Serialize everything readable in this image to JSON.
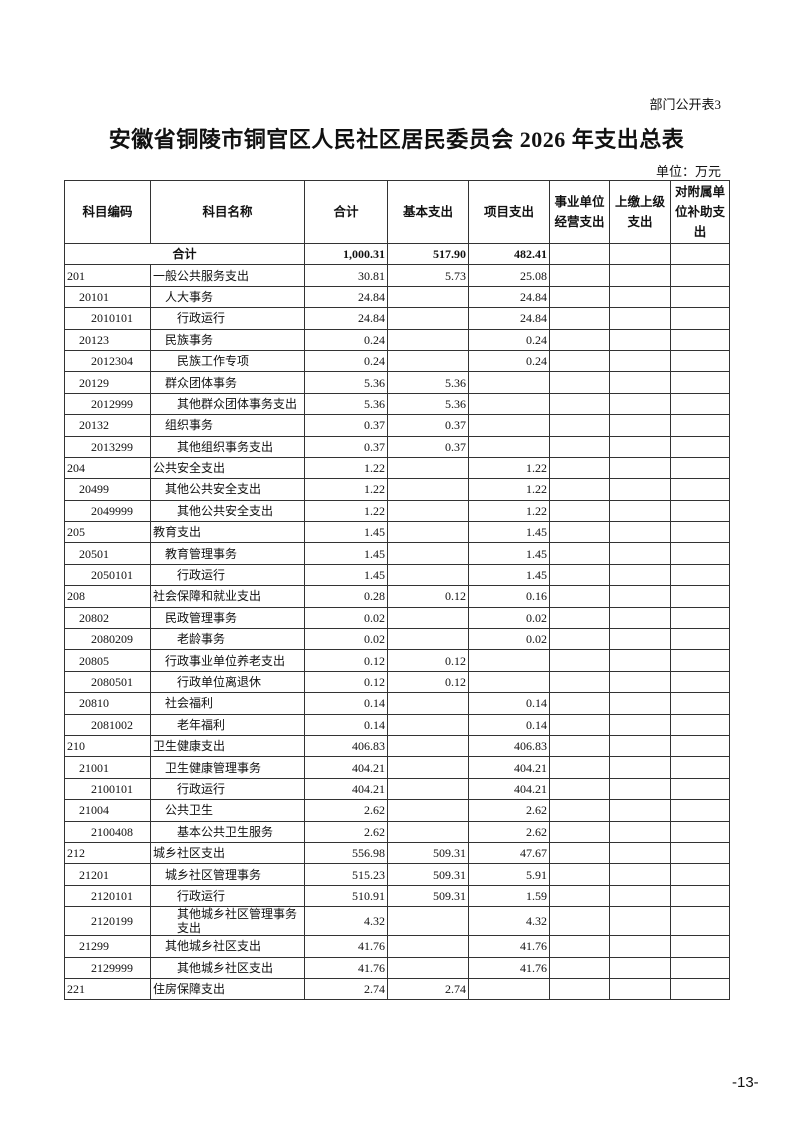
{
  "doc_label": "部门公开表3",
  "title": "安徽省铜陵市铜官区人民社区居民委员会 2026 年支出总表",
  "unit": "单位：万元",
  "page_number": "-13-",
  "table": {
    "headers": [
      "科目编码",
      "科目名称",
      "合计",
      "基本支出",
      "项目支出",
      "事业单位经营支出",
      "上缴上级支出",
      "对附属单位补助支出"
    ],
    "total": {
      "label": "合计",
      "total": "1,000.31",
      "basic": "517.90",
      "project": "482.41"
    },
    "rows": [
      {
        "code": "201",
        "name": "一般公共服务支出",
        "level": 0,
        "total": "30.81",
        "basic": "5.73",
        "project": "25.08"
      },
      {
        "code": "20101",
        "name": "人大事务",
        "level": 1,
        "total": "24.84",
        "basic": "",
        "project": "24.84"
      },
      {
        "code": "2010101",
        "name": "行政运行",
        "level": 2,
        "total": "24.84",
        "basic": "",
        "project": "24.84"
      },
      {
        "code": "20123",
        "name": "民族事务",
        "level": 1,
        "total": "0.24",
        "basic": "",
        "project": "0.24"
      },
      {
        "code": "2012304",
        "name": "民族工作专项",
        "level": 2,
        "total": "0.24",
        "basic": "",
        "project": "0.24"
      },
      {
        "code": "20129",
        "name": "群众团体事务",
        "level": 1,
        "total": "5.36",
        "basic": "5.36",
        "project": ""
      },
      {
        "code": "2012999",
        "name": "其他群众团体事务支出",
        "level": 2,
        "total": "5.36",
        "basic": "5.36",
        "project": ""
      },
      {
        "code": "20132",
        "name": "组织事务",
        "level": 1,
        "total": "0.37",
        "basic": "0.37",
        "project": ""
      },
      {
        "code": "2013299",
        "name": "其他组织事务支出",
        "level": 2,
        "total": "0.37",
        "basic": "0.37",
        "project": ""
      },
      {
        "code": "204",
        "name": "公共安全支出",
        "level": 0,
        "total": "1.22",
        "basic": "",
        "project": "1.22"
      },
      {
        "code": "20499",
        "name": "其他公共安全支出",
        "level": 1,
        "total": "1.22",
        "basic": "",
        "project": "1.22"
      },
      {
        "code": "2049999",
        "name": "其他公共安全支出",
        "level": 2,
        "total": "1.22",
        "basic": "",
        "project": "1.22"
      },
      {
        "code": "205",
        "name": "教育支出",
        "level": 0,
        "total": "1.45",
        "basic": "",
        "project": "1.45"
      },
      {
        "code": "20501",
        "name": "教育管理事务",
        "level": 1,
        "total": "1.45",
        "basic": "",
        "project": "1.45"
      },
      {
        "code": "2050101",
        "name": "行政运行",
        "level": 2,
        "total": "1.45",
        "basic": "",
        "project": "1.45"
      },
      {
        "code": "208",
        "name": "社会保障和就业支出",
        "level": 0,
        "total": "0.28",
        "basic": "0.12",
        "project": "0.16"
      },
      {
        "code": "20802",
        "name": "民政管理事务",
        "level": 1,
        "total": "0.02",
        "basic": "",
        "project": "0.02"
      },
      {
        "code": "2080209",
        "name": "老龄事务",
        "level": 2,
        "total": "0.02",
        "basic": "",
        "project": "0.02"
      },
      {
        "code": "20805",
        "name": "行政事业单位养老支出",
        "level": 1,
        "total": "0.12",
        "basic": "0.12",
        "project": ""
      },
      {
        "code": "2080501",
        "name": "行政单位离退休",
        "level": 2,
        "total": "0.12",
        "basic": "0.12",
        "project": ""
      },
      {
        "code": "20810",
        "name": "社会福利",
        "level": 1,
        "total": "0.14",
        "basic": "",
        "project": "0.14"
      },
      {
        "code": "2081002",
        "name": "老年福利",
        "level": 2,
        "total": "0.14",
        "basic": "",
        "project": "0.14"
      },
      {
        "code": "210",
        "name": "卫生健康支出",
        "level": 0,
        "total": "406.83",
        "basic": "",
        "project": "406.83"
      },
      {
        "code": "21001",
        "name": "卫生健康管理事务",
        "level": 1,
        "total": "404.21",
        "basic": "",
        "project": "404.21"
      },
      {
        "code": "2100101",
        "name": "行政运行",
        "level": 2,
        "total": "404.21",
        "basic": "",
        "project": "404.21"
      },
      {
        "code": "21004",
        "name": "公共卫生",
        "level": 1,
        "total": "2.62",
        "basic": "",
        "project": "2.62"
      },
      {
        "code": "2100408",
        "name": "基本公共卫生服务",
        "level": 2,
        "total": "2.62",
        "basic": "",
        "project": "2.62"
      },
      {
        "code": "212",
        "name": "城乡社区支出",
        "level": 0,
        "total": "556.98",
        "basic": "509.31",
        "project": "47.67"
      },
      {
        "code": "21201",
        "name": "城乡社区管理事务",
        "level": 1,
        "total": "515.23",
        "basic": "509.31",
        "project": "5.91"
      },
      {
        "code": "2120101",
        "name": "行政运行",
        "level": 2,
        "total": "510.91",
        "basic": "509.31",
        "project": "1.59"
      },
      {
        "code": "2120199",
        "name": "其他城乡社区管理事务支出",
        "level": 2,
        "total": "4.32",
        "basic": "",
        "project": "4.32"
      },
      {
        "code": "21299",
        "name": "其他城乡社区支出",
        "level": 1,
        "total": "41.76",
        "basic": "",
        "project": "41.76"
      },
      {
        "code": "2129999",
        "name": "其他城乡社区支出",
        "level": 2,
        "total": "41.76",
        "basic": "",
        "project": "41.76"
      },
      {
        "code": "221",
        "name": "住房保障支出",
        "level": 0,
        "total": "2.74",
        "basic": "2.74",
        "project": ""
      }
    ]
  }
}
